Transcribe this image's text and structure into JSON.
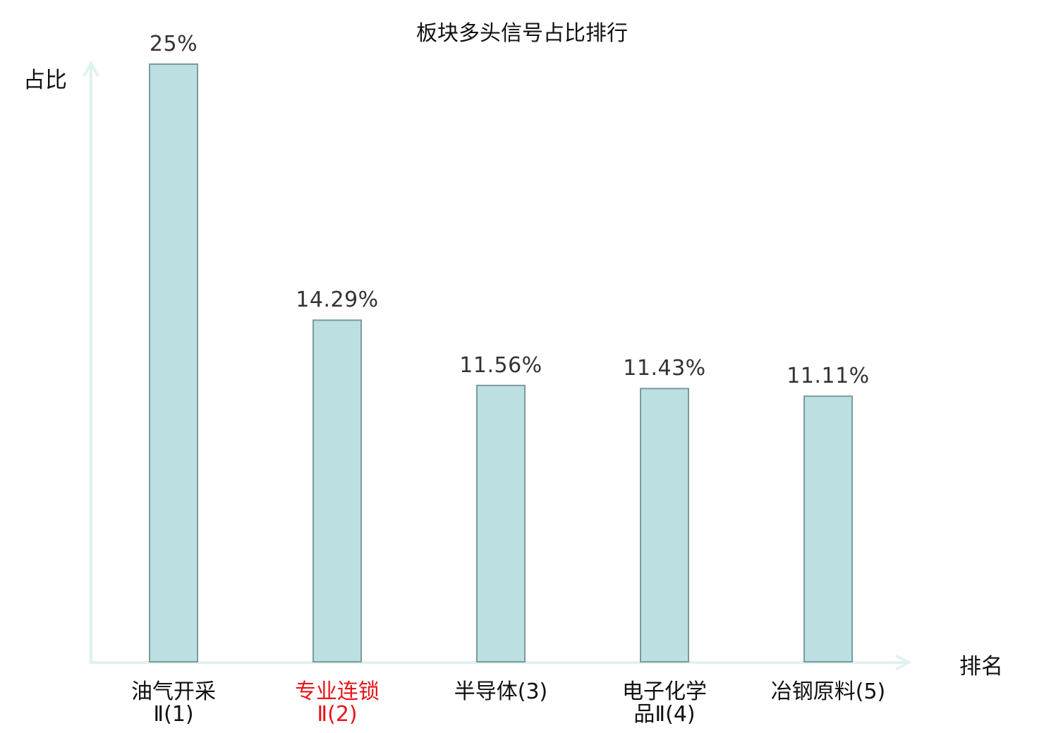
{
  "chart_data": {
    "type": "bar",
    "title": "板块多头信号占比排行",
    "ylabel": "占比",
    "xlabel": "排名",
    "categories": [
      {
        "line1": "油气开采",
        "line2": "Ⅱ(1)",
        "highlight": false
      },
      {
        "line1": "专业连锁",
        "line2": "Ⅱ(2)",
        "highlight": true
      },
      {
        "line1": "半导体(3)",
        "line2": "",
        "highlight": false
      },
      {
        "line1": "电子化学",
        "line2": "品Ⅱ(4)",
        "highlight": false
      },
      {
        "line1": "冶钢原料(5)",
        "line2": "",
        "highlight": false
      }
    ],
    "values": [
      25,
      14.29,
      11.56,
      11.43,
      11.11
    ],
    "value_labels": [
      "25%",
      "14.29%",
      "11.56%",
      "11.43%",
      "11.11%"
    ],
    "ylim": [
      0,
      25
    ],
    "grid": false,
    "colors": {
      "bar_fill": "#bce0e1",
      "bar_stroke": "#7a9b9c",
      "axis": "#e0f2ef",
      "highlight_label": "#e8141a"
    }
  }
}
